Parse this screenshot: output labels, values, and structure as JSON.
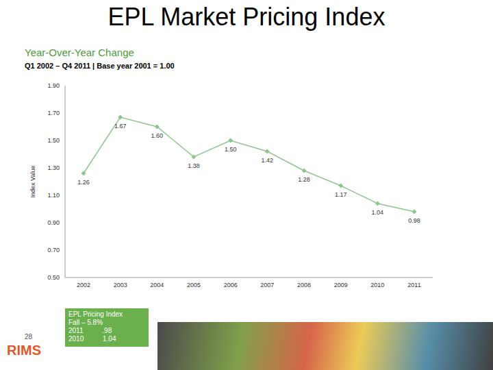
{
  "chart_data": {
    "type": "line",
    "title": "EPL Market Pricing Index",
    "subtitle": "Year-Over-Year Change",
    "subtitle2": "Q1 2002 – Q4 2011 | Base year 2001 = 1.00",
    "y_label": "Index Value",
    "categories": [
      "2002",
      "2003",
      "2004",
      "2005",
      "2006",
      "2007",
      "2008",
      "2009",
      "2010",
      "2011"
    ],
    "values": [
      1.26,
      1.67,
      1.6,
      1.38,
      1.5,
      1.42,
      1.28,
      1.17,
      1.04,
      0.98
    ],
    "value_labels": [
      "1.26",
      "1.67",
      "1.60",
      "1.38",
      "1.50",
      "1.42",
      "1.28",
      "1.17",
      "1.04",
      "0.98"
    ],
    "data_labels": true,
    "color": "#8dc68d",
    "marker": "diamond",
    "grid": false,
    "ylim": [
      0.5,
      1.9
    ],
    "yticks": [
      {
        "value": 0.5,
        "label": "0.50"
      },
      {
        "value": 0.7,
        "label": "0.70"
      },
      {
        "value": 0.9,
        "label": "0.90"
      },
      {
        "value": 1.1,
        "label": "1.10"
      },
      {
        "value": 1.3,
        "label": "1.30"
      },
      {
        "value": 1.5,
        "label": "1.50"
      },
      {
        "value": 1.7,
        "label": "1.70"
      },
      {
        "value": 1.9,
        "label": "1.90"
      }
    ],
    "annotations": [
      "EPL Pricing Index",
      "Fall – 5.8%",
      "2011          .98",
      "2010          1.04"
    ],
    "footer_logo": "RIMS",
    "page_number": "28"
  }
}
